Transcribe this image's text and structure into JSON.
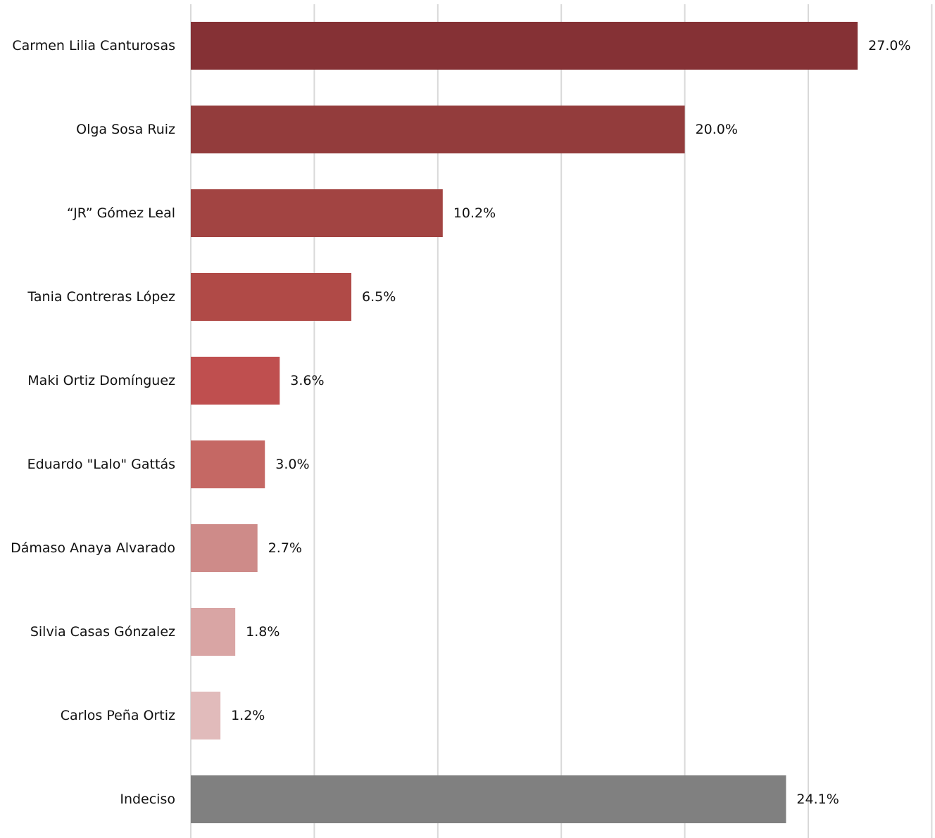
{
  "chart_data": {
    "type": "bar",
    "orientation": "horizontal",
    "categories": [
      "Carmen Lilia Canturosas",
      "Olga Sosa Ruiz",
      "“JR” Gómez Leal",
      "Tania Contreras López",
      "Maki Ortiz Domínguez",
      "Eduardo \"Lalo\" Gattás",
      "Dámaso Anaya Alvarado",
      "Silvia Casas Gónzalez",
      "Carlos Peña Ortiz",
      "Indeciso"
    ],
    "values": [
      27.0,
      20.0,
      10.2,
      6.5,
      3.6,
      3.0,
      2.7,
      1.8,
      1.2,
      24.1
    ],
    "value_labels": [
      "27.0%",
      "20.0%",
      "10.2%",
      "6.5%",
      "3.6%",
      "3.0%",
      "2.7%",
      "1.8%",
      "1.2%",
      "24.1%"
    ],
    "colors": [
      "#853135",
      "#933c3c",
      "#a24442",
      "#b04a47",
      "#bf4f4f",
      "#c56864",
      "#ce8b89",
      "#d9a5a4",
      "#e1bbbb",
      "#808080"
    ],
    "xlim": [
      0,
      30
    ],
    "grid": true,
    "legend": "none",
    "title": "",
    "xlabel": "",
    "ylabel": ""
  }
}
